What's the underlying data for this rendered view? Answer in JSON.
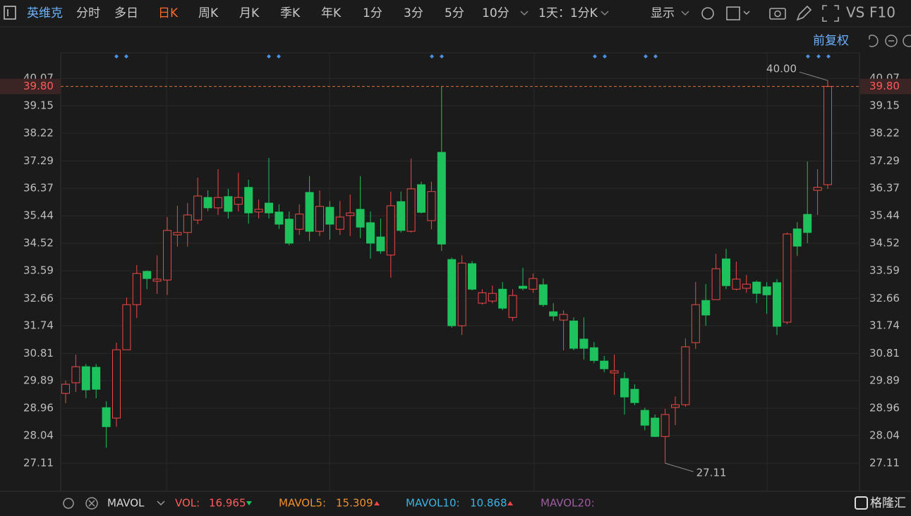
{
  "toolbar": {
    "stock": "英维克",
    "periods": [
      "分时",
      "多日",
      "日K",
      "周K",
      "月K",
      "季K",
      "年K",
      "1分",
      "3分",
      "5分",
      "10分"
    ],
    "active": 2,
    "interval": "1天：1分K",
    "display": "显示",
    "vs": "VS",
    "f10": "F10"
  },
  "adjust": "前复权",
  "volume_bar": {
    "indicator": "MAVOL",
    "items": [
      {
        "name": "VOL:",
        "value": 16.965,
        "color": "#ff5c5c"
      },
      {
        "name": "MAVOL5:",
        "value": 15.309,
        "color": "#f0902e"
      },
      {
        "name": "MAVOL10:",
        "value": 10.868,
        "color": "#3cb4e6"
      }
    ],
    "last": "MAVOL20:"
  },
  "logo": "格隆汇",
  "chart_data": {
    "type": "candlestick",
    "up_color": "#f04848",
    "down_color": "#1ec25c",
    "open": [
      29.46,
      29.82,
      30.36,
      30.34,
      28.98,
      28.63,
      30.93,
      32.45,
      33.57,
      33.24,
      33.28,
      34.8,
      34.88,
      35.3,
      36.06,
      35.71,
      36.09,
      35.83,
      36.4,
      35.57,
      35.87,
      35.57,
      35.33,
      34.99,
      36.23,
      34.92,
      35.73,
      34.99,
      35.45,
      35.66,
      35.21,
      34.73,
      34.12,
      35.92,
      34.92,
      36.49,
      35.28,
      37.58,
      33.97,
      31.74,
      33.83,
      32.5,
      32.57,
      32.97,
      32.02,
      33.07,
      32.97,
      33.12,
      32.21,
      31.93,
      31.9,
      31.29,
      31.0,
      30.55,
      30.15,
      29.96,
      29.6,
      28.89,
      28.63,
      28.01,
      28.99,
      29.08,
      31.17,
      32.59,
      32.62,
      33.99,
      32.97,
      33.0,
      33.21,
      33.05,
      33.19,
      31.86,
      35.0,
      35.49,
      36.3,
      36.49
    ],
    "high": [
      29.89,
      30.77,
      30.45,
      30.45,
      29.2,
      31.17,
      32.69,
      33.78,
      33.6,
      34.11,
      35.4,
      35.78,
      35.87,
      36.73,
      36.3,
      37.01,
      36.35,
      36.89,
      36.66,
      35.99,
      37.39,
      35.83,
      35.59,
      35.83,
      36.78,
      36.3,
      35.94,
      35.94,
      36.16,
      36.78,
      35.59,
      35.35,
      36.26,
      36.26,
      37.37,
      36.59,
      36.59,
      39.8,
      34.04,
      34.11,
      33.92,
      32.97,
      33.09,
      33.21,
      32.97,
      33.69,
      33.5,
      33.33,
      32.5,
      32.26,
      32.02,
      32.02,
      31.19,
      30.72,
      30.77,
      30.17,
      29.77,
      28.98,
      28.75,
      28.94,
      29.36,
      31.31,
      33.21,
      33.14,
      34.16,
      34.33,
      33.9,
      33.45,
      33.26,
      33.21,
      33.31,
      34.88,
      35.23,
      37.27,
      37.01,
      40.0
    ],
    "low": [
      29.13,
      29.51,
      29.3,
      29.3,
      27.63,
      28.34,
      30.93,
      32.0,
      32.97,
      32.81,
      32.78,
      34.4,
      34.4,
      35.16,
      35.6,
      35.47,
      35.35,
      35.59,
      35.18,
      35.35,
      35.35,
      35.0,
      34.45,
      34.8,
      34.59,
      34.76,
      34.64,
      34.8,
      34.76,
      34.69,
      34.0,
      34.16,
      33.36,
      34.88,
      34.88,
      35.52,
      34.99,
      34.26,
      31.67,
      31.43,
      32.93,
      32.45,
      32.5,
      32.26,
      31.9,
      32.93,
      32.85,
      32.38,
      31.9,
      30.91,
      30.91,
      30.6,
      30.48,
      30.17,
      29.41,
      28.75,
      29.06,
      28.22,
      27.99,
      27.11,
      28.39,
      29.01,
      30.96,
      31.74,
      32.62,
      32.97,
      32.93,
      32.85,
      32.5,
      32.14,
      31.43,
      31.79,
      34.09,
      34.52,
      35.47,
      36.35
    ],
    "close": [
      29.77,
      30.36,
      29.58,
      29.6,
      28.34,
      30.93,
      32.45,
      33.5,
      33.33,
      33.31,
      34.95,
      34.88,
      35.47,
      36.11,
      35.71,
      36.06,
      35.59,
      36.06,
      35.54,
      35.66,
      35.54,
      35.16,
      34.52,
      35.5,
      34.92,
      35.76,
      35.16,
      35.4,
      35.54,
      35.06,
      34.52,
      34.26,
      35.78,
      34.95,
      36.35,
      35.56,
      36.26,
      34.49,
      31.74,
      33.85,
      32.97,
      32.85,
      32.83,
      32.33,
      32.76,
      33.0,
      33.33,
      32.45,
      32.07,
      32.12,
      30.98,
      30.98,
      30.57,
      30.29,
      30.22,
      29.34,
      29.15,
      28.39,
      28.01,
      28.75,
      29.08,
      31.03,
      32.45,
      32.1,
      33.66,
      33.09,
      33.31,
      33.14,
      32.83,
      32.78,
      31.72,
      34.83,
      34.42,
      34.88,
      36.4,
      39.8
    ],
    "ylim": [
      26.21,
      40.93
    ],
    "yticks": [
      40.07,
      39.15,
      38.22,
      37.29,
      36.37,
      35.44,
      34.52,
      33.59,
      32.66,
      31.74,
      30.81,
      29.89,
      28.96,
      28.04,
      27.11
    ],
    "grid": true,
    "last_price": {
      "value": 39.8,
      "label": "39.80"
    },
    "annotations": [
      {
        "value": 40,
        "label": "40.00"
      },
      {
        "value": 27.11,
        "label": "27.11"
      }
    ]
  }
}
